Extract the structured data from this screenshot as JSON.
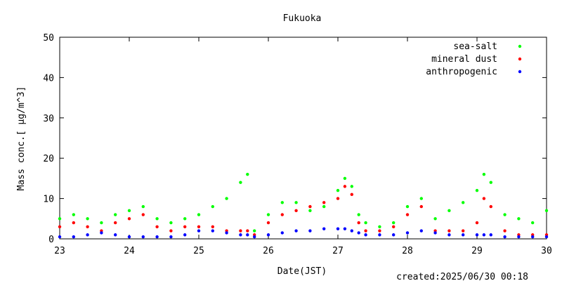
{
  "chart_data": {
    "type": "scatter",
    "title": "Fukuoka",
    "xlabel": "Date(JST)",
    "ylabel": "Mass conc.[ μg/m^3]",
    "xlim": [
      23,
      30
    ],
    "ylim": [
      0,
      50
    ],
    "x_ticks": [
      "23",
      "24",
      "25",
      "26",
      "27",
      "28",
      "29",
      "30"
    ],
    "y_ticks": [
      "0",
      "10",
      "20",
      "30",
      "40",
      "50"
    ],
    "grid": false,
    "legend_position": "top-right",
    "footer": "created:2025/06/30 00:18",
    "series": [
      {
        "name": "sea-salt",
        "color": "#00ff00",
        "x": [
          23.0,
          23.2,
          23.4,
          23.6,
          23.8,
          24.0,
          24.2,
          24.4,
          24.6,
          24.8,
          25.0,
          25.2,
          25.4,
          25.6,
          25.7,
          25.8,
          26.0,
          26.2,
          26.4,
          26.6,
          26.8,
          27.0,
          27.1,
          27.2,
          27.3,
          27.4,
          27.6,
          27.8,
          28.0,
          28.2,
          28.4,
          28.6,
          28.8,
          29.0,
          29.1,
          29.2,
          29.4,
          29.6,
          29.8,
          30.0
        ],
        "y": [
          5,
          6,
          5,
          4,
          6,
          7,
          8,
          5,
          4,
          5,
          6,
          8,
          10,
          14,
          16,
          2,
          6,
          9,
          9,
          7,
          8,
          12,
          15,
          13,
          6,
          4,
          3,
          4,
          8,
          10,
          5,
          7,
          9,
          12,
          16,
          14,
          6,
          5,
          4,
          7
        ]
      },
      {
        "name": "mineral dust",
        "color": "#ff0000",
        "x": [
          23.0,
          23.2,
          23.4,
          23.6,
          23.8,
          24.0,
          24.2,
          24.4,
          24.6,
          24.8,
          25.0,
          25.2,
          25.4,
          25.6,
          25.7,
          25.8,
          26.0,
          26.2,
          26.4,
          26.6,
          26.8,
          27.0,
          27.1,
          27.2,
          27.3,
          27.4,
          27.6,
          27.8,
          28.0,
          28.2,
          28.4,
          28.6,
          28.8,
          29.0,
          29.1,
          29.2,
          29.4,
          29.6,
          29.8,
          30.0
        ],
        "y": [
          3,
          4,
          3,
          2,
          4,
          5,
          6,
          3,
          2,
          3,
          3,
          3,
          2,
          2,
          2,
          1,
          4,
          6,
          7,
          8,
          9,
          10,
          13,
          11,
          4,
          2,
          2,
          3,
          6,
          8,
          2,
          2,
          2,
          4,
          10,
          8,
          2,
          1,
          1,
          1
        ]
      },
      {
        "name": "anthropogenic",
        "color": "#0000ff",
        "x": [
          23.0,
          23.2,
          23.4,
          23.6,
          23.8,
          24.0,
          24.2,
          24.4,
          24.6,
          24.8,
          25.0,
          25.2,
          25.4,
          25.6,
          25.7,
          25.8,
          26.0,
          26.2,
          26.4,
          26.6,
          26.8,
          27.0,
          27.1,
          27.2,
          27.3,
          27.4,
          27.6,
          27.8,
          28.0,
          28.2,
          28.4,
          28.6,
          28.8,
          29.0,
          29.1,
          29.2,
          29.4,
          29.6,
          29.8,
          30.0
        ],
        "y": [
          0.5,
          0.5,
          1,
          1.5,
          1,
          0.5,
          0.5,
          0.5,
          0.5,
          1,
          2,
          2,
          1.5,
          1,
          1,
          0.5,
          1,
          1.5,
          2,
          2,
          2.5,
          2.5,
          2.5,
          2,
          1.5,
          1,
          1,
          1,
          1.5,
          2,
          1.5,
          1,
          1,
          1,
          1,
          1,
          0.5,
          0.5,
          0.5,
          0.5
        ]
      }
    ]
  }
}
